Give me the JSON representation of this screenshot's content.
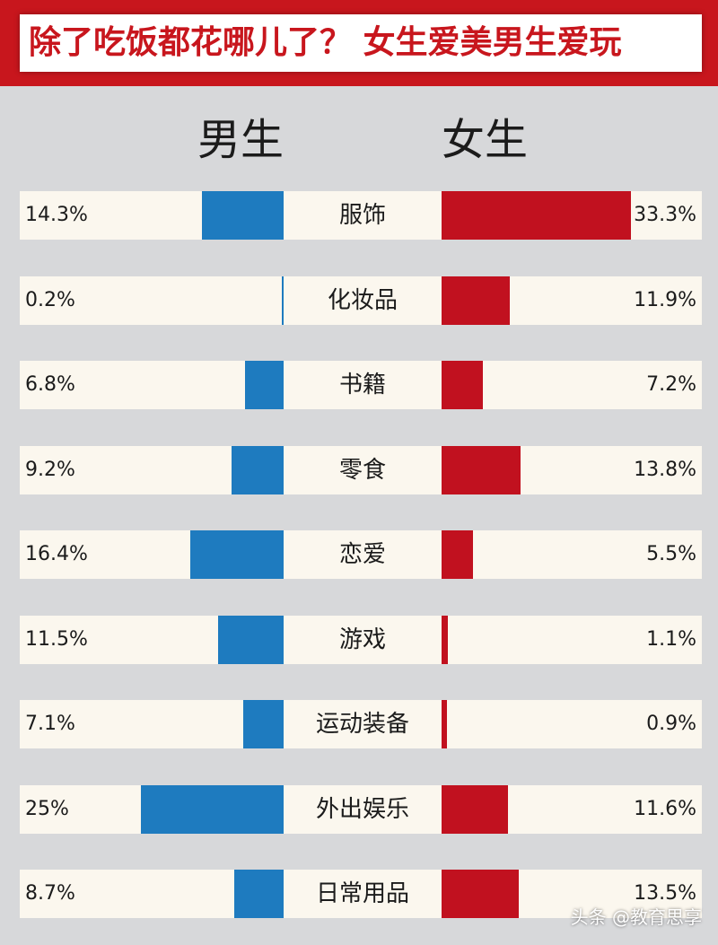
{
  "title": "除了吃饭都花哪儿了？ 女生爱美男生爱玩",
  "chart_data": {
    "type": "bar",
    "orientation": "horizontal-back-to-back",
    "categories": [
      "服饰",
      "化妆品",
      "书籍",
      "零食",
      "恋爱",
      "游戏",
      "运动装备",
      "外出娱乐",
      "日常用品"
    ],
    "series": [
      {
        "name": "男生",
        "values": [
          14.3,
          0.2,
          6.8,
          9.2,
          16.4,
          11.5,
          7.1,
          25,
          8.7
        ],
        "labels": [
          "14.3%",
          "0.2%",
          "6.8%",
          "9.2%",
          "16.4%",
          "11.5%",
          "7.1%",
          "25%",
          "8.7%"
        ],
        "color": "#1e7bbf"
      },
      {
        "name": "女生",
        "values": [
          33.3,
          11.9,
          7.2,
          13.8,
          5.5,
          1.1,
          0.9,
          11.6,
          13.5
        ],
        "labels": [
          "33.3%",
          "11.9%",
          "7.2%",
          "13.8%",
          "5.5%",
          "1.1%",
          "0.9%",
          "11.6%",
          "13.5%"
        ],
        "color": "#c1111f"
      }
    ],
    "value_unit": "%"
  },
  "watermark": "头条 @教育思享"
}
